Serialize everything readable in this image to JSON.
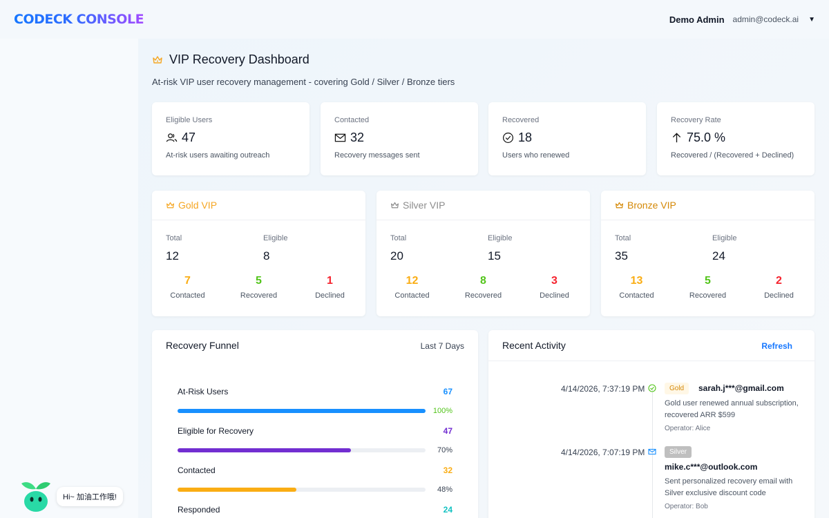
{
  "brand": {
    "logo": "CODECK CONSOLE"
  },
  "user": {
    "name": "Demo Admin",
    "email": "admin@codeck.ai",
    "caret": "▼"
  },
  "page": {
    "title": "VIP Recovery Dashboard",
    "subtitle": "At-risk VIP user recovery management - covering Gold / Silver / Bronze tiers"
  },
  "stats": [
    {
      "label": "Eligible Users",
      "value": "47",
      "desc": "At-risk users awaiting outreach",
      "icon": "users-icon"
    },
    {
      "label": "Contacted",
      "value": "32",
      "desc": "Recovery messages sent",
      "icon": "mail-icon"
    },
    {
      "label": "Recovered",
      "value": "18",
      "desc": "Users who renewed",
      "icon": "check-circle-icon"
    },
    {
      "label": "Recovery Rate",
      "value": "75.0 %",
      "desc": "Recovered / (Recovered + Declined)",
      "icon": "arrow-up-icon"
    }
  ],
  "tiers": [
    {
      "name": "Gold VIP",
      "color": "#f5a623",
      "total_label": "Total",
      "total": "12",
      "eligible_label": "Eligible",
      "eligible": "8",
      "contacted": "7",
      "recovered": "5",
      "declined": "1"
    },
    {
      "name": "Silver VIP",
      "color": "#8c8c8c",
      "total_label": "Total",
      "total": "20",
      "eligible_label": "Eligible",
      "eligible": "15",
      "contacted": "12",
      "recovered": "8",
      "declined": "3"
    },
    {
      "name": "Bronze VIP",
      "color": "#d48806",
      "total_label": "Total",
      "total": "35",
      "eligible_label": "Eligible",
      "eligible": "24",
      "contacted": "13",
      "recovered": "5",
      "declined": "2"
    }
  ],
  "metric_labels": {
    "contacted": "Contacted",
    "recovered": "Recovered",
    "declined": "Declined"
  },
  "metric_colors": {
    "contacted": "#faad14",
    "recovered": "#52c41a",
    "declined": "#f5222d"
  },
  "funnel": {
    "title": "Recovery Funnel",
    "range": "Last 7 Days",
    "items": [
      {
        "name": "At-Risk Users",
        "count": "67",
        "pct": "100%",
        "fraction": 1.0,
        "color": "#1890ff",
        "count_color": "#1890ff",
        "pct_color": "#52c41a"
      },
      {
        "name": "Eligible for Recovery",
        "count": "47",
        "pct": "70%",
        "fraction": 0.7,
        "color": "#722ed1",
        "count_color": "#722ed1",
        "pct_color": "#374151"
      },
      {
        "name": "Contacted",
        "count": "32",
        "pct": "48%",
        "fraction": 0.48,
        "color": "#faad14",
        "count_color": "#faad14",
        "pct_color": "#374151"
      },
      {
        "name": "Responded",
        "count": "24",
        "pct": "",
        "fraction": 0.36,
        "color": "#13c2c2",
        "count_color": "#13c2c2",
        "pct_color": "#374151"
      }
    ]
  },
  "activity": {
    "title": "Recent Activity",
    "refresh": "Refresh",
    "items": [
      {
        "time": "4/14/2026, 7:37:19 PM",
        "icon": "check-circle-icon",
        "icon_color": "#52c41a",
        "badge": "Gold",
        "badge_bg": "#fff7e6",
        "badge_fg": "#d48806",
        "email": "sarah.j***@gmail.com",
        "desc": "Gold user renewed annual subscription, recovered ARR $599",
        "operator": "Operator: Alice"
      },
      {
        "time": "4/14/2026, 7:07:19 PM",
        "icon": "mail-icon",
        "icon_color": "#1890ff",
        "badge": "Silver",
        "badge_bg": "#bfbfbf",
        "badge_fg": "#ffffff",
        "email": "mike.c***@outlook.com",
        "desc": "Sent personalized recovery email with Silver exclusive discount code",
        "operator": "Operator: Bob"
      }
    ]
  },
  "assistant": {
    "bubble": "Hi~ 加油工作哦!"
  }
}
